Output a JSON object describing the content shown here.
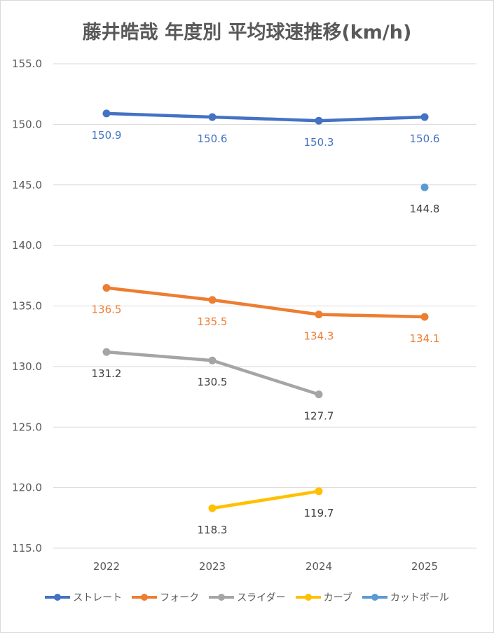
{
  "chart_data": {
    "type": "line",
    "title": "藤井皓哉 年度別 平均球速推移(km/h)",
    "xlabel": "",
    "ylabel": "",
    "categories": [
      "2022",
      "2023",
      "2024",
      "2025"
    ],
    "ylim": [
      115,
      155
    ],
    "ytick_step": 5,
    "ytick_labels": [
      "115.0",
      "120.0",
      "125.0",
      "130.0",
      "135.0",
      "140.0",
      "145.0",
      "150.0",
      "155.0"
    ],
    "grid": true,
    "legend_position": "bottom",
    "series": [
      {
        "name": "ストレート",
        "color": "#4472c4",
        "label_color": "#4472c4",
        "label_pos": "below",
        "values": [
          150.9,
          150.6,
          150.3,
          150.6
        ],
        "labels": [
          "150.9",
          "150.6",
          "150.3",
          "150.6"
        ]
      },
      {
        "name": "フォーク",
        "color": "#ed7d31",
        "label_color": "#ed7d31",
        "label_pos": "below",
        "values": [
          136.5,
          135.5,
          134.3,
          134.1
        ],
        "labels": [
          "136.5",
          "135.5",
          "134.3",
          "134.1"
        ]
      },
      {
        "name": "スライダー",
        "color": "#a5a5a5",
        "label_color": "#404040",
        "label_pos": "below",
        "values": [
          131.2,
          130.5,
          127.7,
          null
        ],
        "labels": [
          "131.2",
          "130.5",
          "127.7",
          ""
        ]
      },
      {
        "name": "カーブ",
        "color": "#ffc000",
        "label_color": "#404040",
        "label_pos": "below",
        "values": [
          null,
          118.3,
          119.7,
          null
        ],
        "labels": [
          "",
          "118.3",
          "119.7",
          ""
        ]
      },
      {
        "name": "カットボール",
        "color": "#5b9bd5",
        "label_color": "#404040",
        "label_pos": "below",
        "values": [
          null,
          null,
          null,
          144.8
        ],
        "labels": [
          "",
          "",
          "",
          "144.8"
        ]
      }
    ]
  }
}
